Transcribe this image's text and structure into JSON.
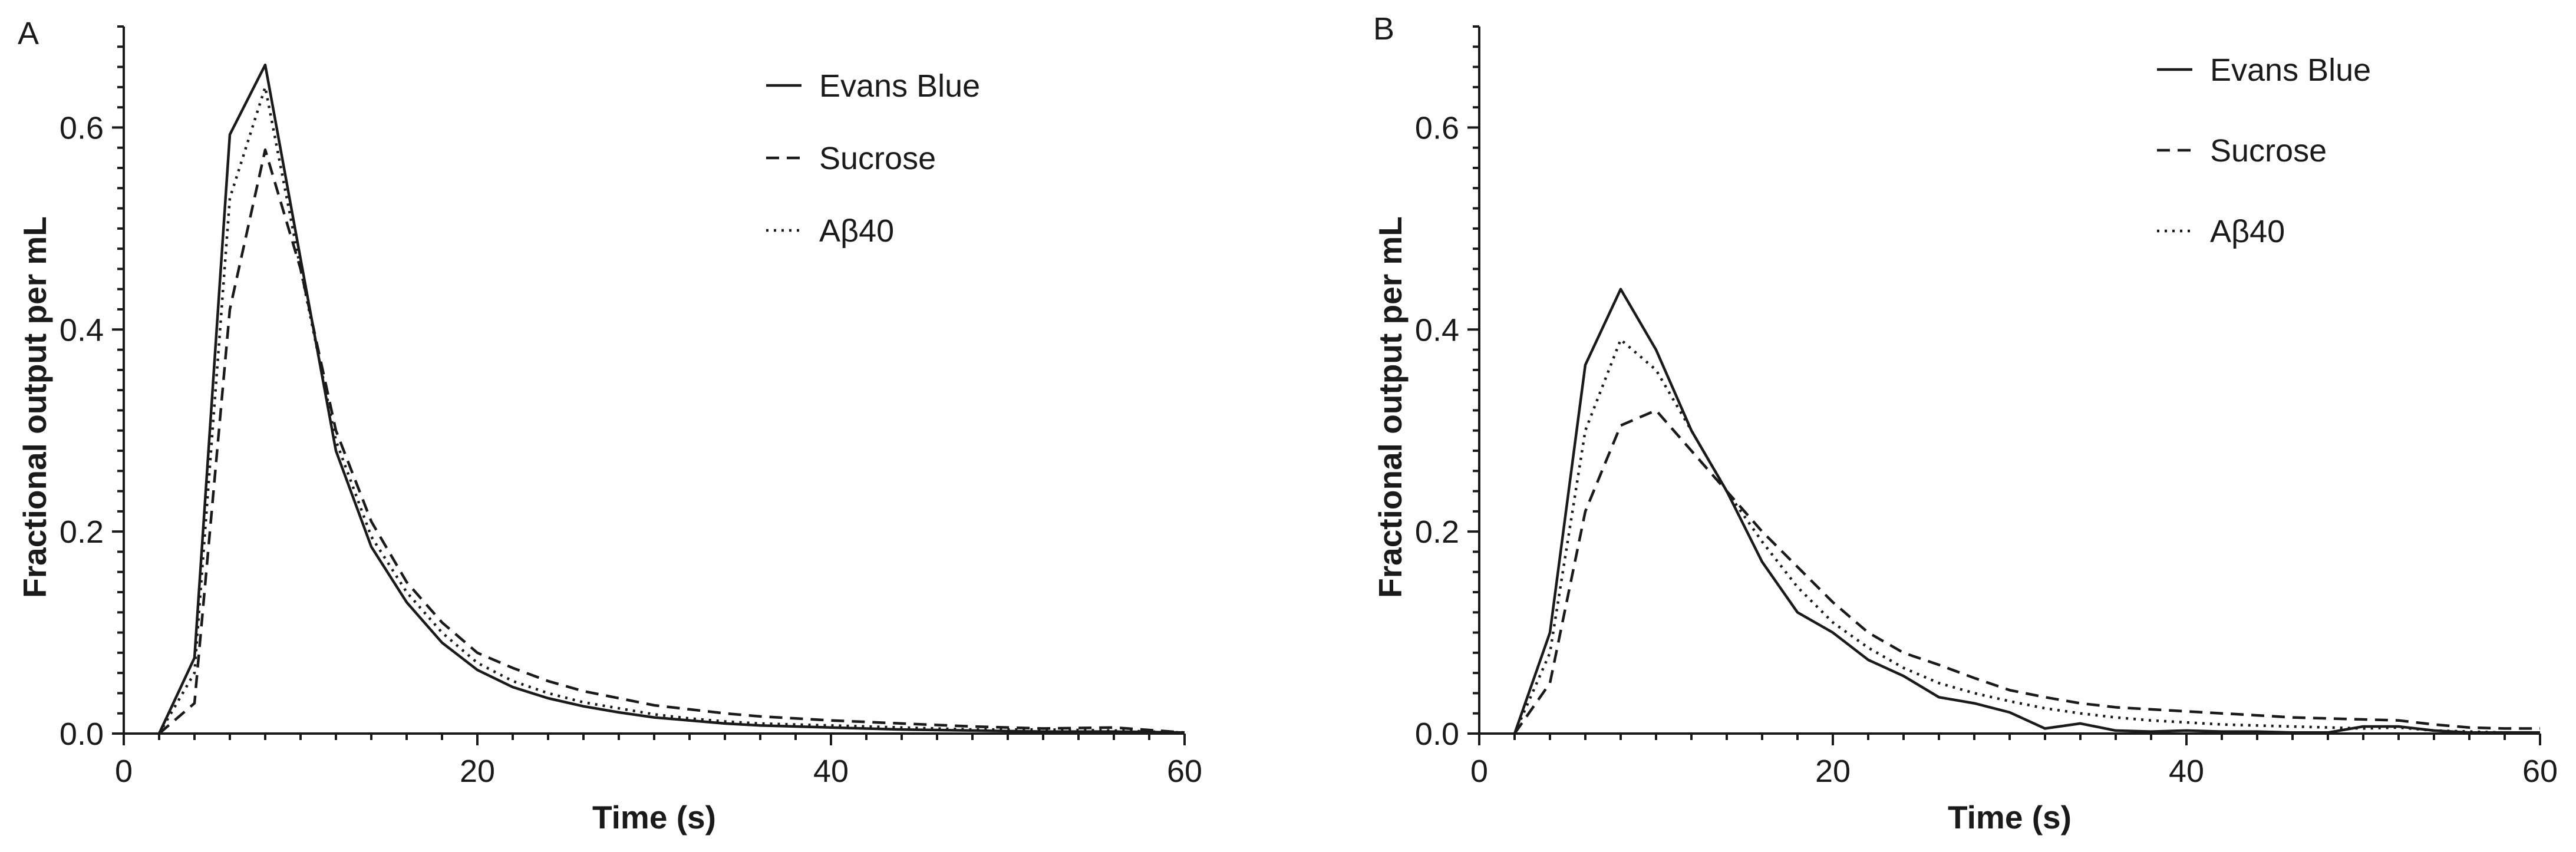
{
  "chart_data": [
    {
      "type": "line",
      "panel_label": "A",
      "xlabel": "Time (s)",
      "ylabel": "Fractional output per mL",
      "xlim": [
        0,
        60
      ],
      "ylim": [
        0,
        0.7
      ],
      "xticks": [
        "0",
        "20",
        "40",
        "60"
      ],
      "yticks": [
        "0.0",
        "0.2",
        "0.4",
        "0.6"
      ],
      "legend_position": "top-right",
      "series": [
        {
          "name": "Evans Blue",
          "style": "solid",
          "points": [
            [
              2,
              0
            ],
            [
              4,
              0.075
            ],
            [
              6,
              0.593
            ],
            [
              8,
              0.662
            ],
            [
              10,
              0.47
            ],
            [
              12,
              0.28
            ],
            [
              14,
              0.185
            ],
            [
              16,
              0.13
            ],
            [
              18,
              0.09
            ],
            [
              20,
              0.063
            ],
            [
              22,
              0.046
            ],
            [
              24,
              0.035
            ],
            [
              26,
              0.027
            ],
            [
              28,
              0.021
            ],
            [
              30,
              0.016
            ],
            [
              32,
              0.013
            ],
            [
              34,
              0.01
            ],
            [
              36,
              0.008
            ],
            [
              38,
              0.007
            ],
            [
              40,
              0.006
            ],
            [
              44,
              0.004
            ],
            [
              48,
              0.003
            ],
            [
              52,
              0.002
            ],
            [
              56,
              0.002
            ],
            [
              60,
              0.001
            ]
          ]
        },
        {
          "name": "Sucrose",
          "style": "dashed",
          "points": [
            [
              2,
              0
            ],
            [
              4,
              0.03
            ],
            [
              6,
              0.42
            ],
            [
              8,
              0.578
            ],
            [
              10,
              0.46
            ],
            [
              12,
              0.3
            ],
            [
              14,
              0.21
            ],
            [
              16,
              0.15
            ],
            [
              18,
              0.11
            ],
            [
              20,
              0.08
            ],
            [
              22,
              0.065
            ],
            [
              24,
              0.052
            ],
            [
              26,
              0.042
            ],
            [
              28,
              0.035
            ],
            [
              30,
              0.028
            ],
            [
              32,
              0.024
            ],
            [
              34,
              0.02
            ],
            [
              36,
              0.017
            ],
            [
              38,
              0.015
            ],
            [
              40,
              0.013
            ],
            [
              44,
              0.01
            ],
            [
              48,
              0.007
            ],
            [
              52,
              0.005
            ],
            [
              56,
              0.006
            ],
            [
              60,
              0.001
            ]
          ]
        },
        {
          "name": "Aβ40",
          "style": "dotted",
          "points": [
            [
              2,
              0
            ],
            [
              4,
              0.06
            ],
            [
              6,
              0.53
            ],
            [
              8,
              0.64
            ],
            [
              10,
              0.46
            ],
            [
              12,
              0.29
            ],
            [
              14,
              0.195
            ],
            [
              16,
              0.14
            ],
            [
              18,
              0.1
            ],
            [
              20,
              0.07
            ],
            [
              22,
              0.052
            ],
            [
              24,
              0.04
            ],
            [
              26,
              0.031
            ],
            [
              28,
              0.025
            ],
            [
              30,
              0.019
            ],
            [
              32,
              0.015
            ],
            [
              34,
              0.012
            ],
            [
              36,
              0.01
            ],
            [
              38,
              0.009
            ],
            [
              40,
              0.008
            ],
            [
              44,
              0.006
            ],
            [
              48,
              0.004
            ],
            [
              52,
              0.004
            ],
            [
              56,
              0.003
            ],
            [
              60,
              0.001
            ]
          ]
        }
      ]
    },
    {
      "type": "line",
      "panel_label": "B",
      "xlabel": "Time (s)",
      "ylabel": "Fractional output per mL",
      "xlim": [
        0,
        60
      ],
      "ylim": [
        0,
        0.7
      ],
      "xticks": [
        "0",
        "20",
        "40",
        "60"
      ],
      "yticks": [
        "0.0",
        "0.2",
        "0.4",
        "0.6"
      ],
      "legend_position": "top-right",
      "series": [
        {
          "name": "Evans Blue",
          "style": "solid",
          "points": [
            [
              2,
              0
            ],
            [
              4,
              0.1
            ],
            [
              6,
              0.365
            ],
            [
              8,
              0.44
            ],
            [
              10,
              0.38
            ],
            [
              12,
              0.3
            ],
            [
              14,
              0.24
            ],
            [
              16,
              0.17
            ],
            [
              18,
              0.12
            ],
            [
              20,
              0.1
            ],
            [
              22,
              0.073
            ],
            [
              24,
              0.057
            ],
            [
              26,
              0.036
            ],
            [
              28,
              0.03
            ],
            [
              30,
              0.021
            ],
            [
              32,
              0.005
            ],
            [
              34,
              0.01
            ],
            [
              36,
              0.003
            ],
            [
              38,
              0.002
            ],
            [
              40,
              0.003
            ],
            [
              42,
              0.002
            ],
            [
              44,
              0.002
            ],
            [
              46,
              0.001
            ],
            [
              48,
              0.001
            ],
            [
              50,
              0.007
            ],
            [
              52,
              0.007
            ],
            [
              54,
              0.003
            ],
            [
              56,
              0.001
            ],
            [
              58,
              0.001
            ],
            [
              60,
              0.001
            ]
          ]
        },
        {
          "name": "Sucrose",
          "style": "dashed",
          "points": [
            [
              2,
              0
            ],
            [
              4,
              0.05
            ],
            [
              6,
              0.22
            ],
            [
              8,
              0.305
            ],
            [
              10,
              0.32
            ],
            [
              12,
              0.28
            ],
            [
              14,
              0.24
            ],
            [
              16,
              0.2
            ],
            [
              18,
              0.165
            ],
            [
              20,
              0.13
            ],
            [
              22,
              0.1
            ],
            [
              24,
              0.08
            ],
            [
              26,
              0.068
            ],
            [
              28,
              0.055
            ],
            [
              30,
              0.043
            ],
            [
              32,
              0.036
            ],
            [
              34,
              0.03
            ],
            [
              36,
              0.026
            ],
            [
              38,
              0.024
            ],
            [
              40,
              0.022
            ],
            [
              42,
              0.02
            ],
            [
              44,
              0.018
            ],
            [
              46,
              0.016
            ],
            [
              48,
              0.015
            ],
            [
              50,
              0.014
            ],
            [
              52,
              0.013
            ],
            [
              54,
              0.009
            ],
            [
              56,
              0.006
            ],
            [
              58,
              0.005
            ],
            [
              60,
              0.005
            ]
          ]
        },
        {
          "name": "Aβ40",
          "style": "dotted",
          "points": [
            [
              2,
              0
            ],
            [
              4,
              0.08
            ],
            [
              6,
              0.3
            ],
            [
              8,
              0.39
            ],
            [
              10,
              0.36
            ],
            [
              12,
              0.3
            ],
            [
              14,
              0.24
            ],
            [
              16,
              0.19
            ],
            [
              18,
              0.145
            ],
            [
              20,
              0.11
            ],
            [
              22,
              0.085
            ],
            [
              24,
              0.065
            ],
            [
              26,
              0.05
            ],
            [
              28,
              0.04
            ],
            [
              30,
              0.032
            ],
            [
              32,
              0.025
            ],
            [
              34,
              0.02
            ],
            [
              36,
              0.016
            ],
            [
              38,
              0.013
            ],
            [
              40,
              0.011
            ],
            [
              42,
              0.009
            ],
            [
              44,
              0.008
            ],
            [
              46,
              0.007
            ],
            [
              48,
              0.006
            ],
            [
              50,
              0.005
            ],
            [
              52,
              0.006
            ],
            [
              54,
              0.003
            ],
            [
              56,
              0.002
            ],
            [
              58,
              0.001
            ],
            [
              60,
              0.001
            ]
          ]
        }
      ]
    }
  ]
}
